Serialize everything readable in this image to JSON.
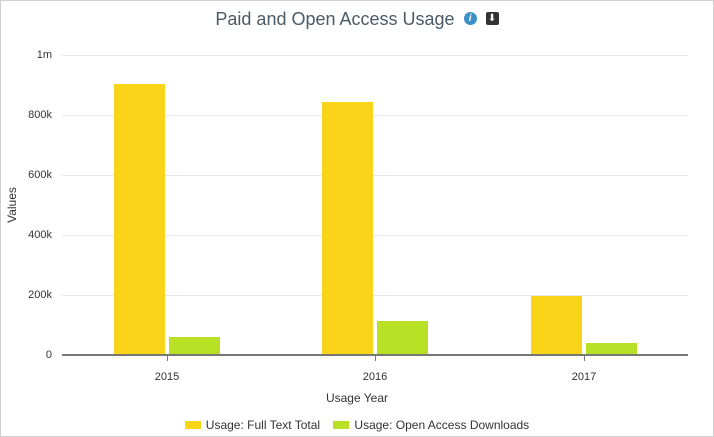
{
  "header": {
    "title": "Paid and Open Access Usage",
    "info_icon": "i",
    "download_icon": "⬇"
  },
  "colors": {
    "series1": "#fad419",
    "series2": "#b8e024"
  },
  "chart_data": {
    "type": "bar",
    "title": "Paid and Open Access Usage",
    "xlabel": "Usage Year",
    "ylabel": "Values",
    "categories": [
      "2015",
      "2016",
      "2017"
    ],
    "series": [
      {
        "name": "Usage: Full Text Total",
        "values": [
          904000,
          843000,
          197000
        ]
      },
      {
        "name": "Usage: Open Access Downloads",
        "values": [
          60000,
          113000,
          40000
        ]
      }
    ],
    "yticks": [
      "0",
      "200k",
      "400k",
      "600k",
      "800k",
      "1m"
    ],
    "ylim": [
      0,
      1000000
    ],
    "grid": true,
    "legend_position": "bottom"
  }
}
